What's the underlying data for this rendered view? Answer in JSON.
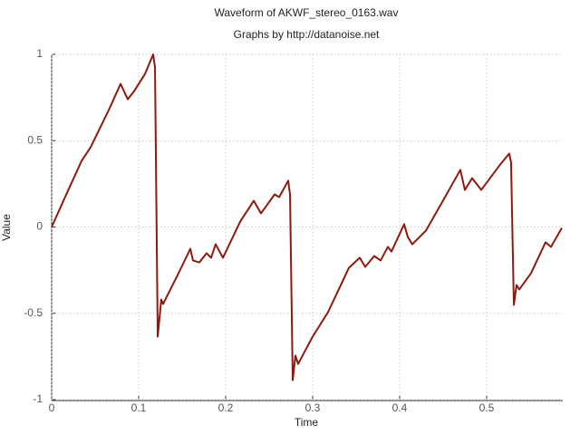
{
  "chart_data": {
    "type": "line",
    "title": "Waveform of AKWF_stereo_0163.wav",
    "subtitle": "Graphs by http://datanoise.net",
    "x_label": "Time",
    "y_label": "Value",
    "color": "#8b1a10",
    "grid": true,
    "xlim": [
      0,
      0.5865
    ],
    "ylim": [
      -1,
      1
    ],
    "xticks": [
      0,
      0.1,
      0.2,
      0.3,
      0.4,
      0.5
    ],
    "yticks": [
      -1,
      -0.5,
      0,
      0.5,
      1
    ],
    "x": [
      0,
      0.0135,
      0.0344,
      0.0448,
      0.0656,
      0.0792,
      0.0875,
      0.0948,
      0.1073,
      0.1167,
      0.1188,
      0.1219,
      0.126,
      0.1281,
      0.1458,
      0.1594,
      0.1625,
      0.1698,
      0.1781,
      0.1833,
      0.1885,
      0.1969,
      0.2167,
      0.2323,
      0.2406,
      0.2563,
      0.2615,
      0.2719,
      0.274,
      0.2771,
      0.2802,
      0.2833,
      0.3,
      0.3177,
      0.3417,
      0.3542,
      0.3604,
      0.3708,
      0.3781,
      0.3865,
      0.3906,
      0.4052,
      0.4094,
      0.4146,
      0.4302,
      0.451,
      0.4698,
      0.475,
      0.4833,
      0.4938,
      0.5156,
      0.526,
      0.5281,
      0.5313,
      0.5344,
      0.5375,
      0.551,
      0.5677,
      0.574,
      0.5865
    ],
    "values": [
      0,
      0.152,
      0.383,
      0.462,
      0.677,
      0.829,
      0.74,
      0.787,
      0.887,
      1.0,
      0.924,
      -0.635,
      -0.42,
      -0.446,
      -0.268,
      -0.126,
      -0.194,
      -0.205,
      -0.152,
      -0.178,
      -0.1,
      -0.178,
      0.031,
      0.152,
      0.079,
      0.189,
      0.173,
      0.268,
      0.189,
      -0.887,
      -0.745,
      -0.793,
      -0.635,
      -0.493,
      -0.236,
      -0.178,
      -0.231,
      -0.168,
      -0.194,
      -0.115,
      -0.142,
      0.016,
      -0.058,
      -0.1,
      -0.021,
      0.163,
      0.331,
      0.215,
      0.283,
      0.215,
      0.362,
      0.425,
      0.373,
      -0.451,
      -0.336,
      -0.362,
      -0.268,
      -0.089,
      -0.115,
      -0.005
    ]
  }
}
